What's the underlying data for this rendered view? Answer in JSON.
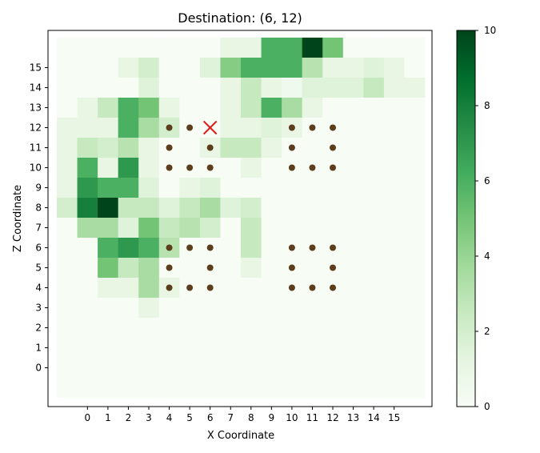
{
  "chart_data": {
    "type": "heatmap",
    "title": "Destination: (6, 12)",
    "xlabel": "X Coordinate",
    "ylabel": "Z Coordinate",
    "x_ticks": [
      "0",
      "1",
      "2",
      "3",
      "4",
      "5",
      "6",
      "7",
      "8",
      "9",
      "10",
      "11",
      "12",
      "13",
      "14",
      "15"
    ],
    "y_ticks": [
      "0",
      "1",
      "2",
      "3",
      "4",
      "5",
      "6",
      "7",
      "8",
      "9",
      "10",
      "11",
      "12",
      "13",
      "14",
      "15"
    ],
    "grid_x_range": [
      -1.5,
      16.5
    ],
    "grid_y_range": [
      -1.5,
      16.5
    ],
    "colormap": "Greens",
    "colorbar": {
      "min": 0,
      "max": 10,
      "ticks": [
        "0",
        "2",
        "4",
        "6",
        "8",
        "10"
      ]
    },
    "rows_top_to_bottom_z": [
      16,
      15,
      14,
      13,
      12,
      11,
      10,
      9,
      8,
      7,
      6,
      5,
      4,
      3,
      2,
      1,
      0,
      -1
    ],
    "columns_left_to_right_x": [
      -1,
      0,
      1,
      2,
      3,
      4,
      5,
      6,
      7,
      8,
      9,
      10,
      11,
      12,
      13,
      14,
      15,
      16
    ],
    "values": [
      [
        0,
        0,
        0,
        0,
        0,
        0,
        0,
        0,
        1,
        1,
        6,
        6,
        10,
        5,
        0,
        0,
        0,
        0
      ],
      [
        0,
        0,
        0,
        1,
        2,
        0,
        0,
        1.5,
        4.5,
        6,
        6,
        6,
        3,
        1,
        1,
        1.5,
        1,
        0
      ],
      [
        0,
        0,
        0,
        0,
        1.5,
        0,
        0,
        0,
        1,
        2.5,
        1,
        0.5,
        1.5,
        1.5,
        1.5,
        2.5,
        1,
        1
      ],
      [
        0,
        1,
        2.5,
        6,
        5,
        1,
        0,
        0,
        1,
        2.5,
        6,
        3.5,
        1,
        0,
        0,
        0,
        0,
        0
      ],
      [
        1,
        1,
        1,
        6,
        3.5,
        2,
        0,
        0,
        1,
        1,
        1.5,
        1,
        0,
        0,
        0,
        0,
        0,
        0
      ],
      [
        1,
        2.5,
        2,
        3,
        1,
        0,
        0,
        1,
        2.5,
        2.5,
        1,
        0,
        0,
        0,
        0,
        0,
        0,
        0
      ],
      [
        1,
        6,
        1,
        7,
        1,
        0,
        0,
        0,
        0,
        1,
        0,
        0,
        0,
        0,
        0,
        0,
        0,
        0
      ],
      [
        1,
        7,
        6,
        6,
        1.5,
        0,
        1,
        1.5,
        0,
        0,
        0,
        0,
        0,
        0,
        0,
        0,
        0,
        0
      ],
      [
        2,
        8,
        10,
        2.5,
        2.5,
        1.5,
        2.5,
        3.5,
        1.5,
        2,
        0,
        0,
        0,
        0,
        0,
        0,
        0,
        0
      ],
      [
        0,
        3.5,
        3.5,
        1.5,
        5,
        2.5,
        3,
        2,
        0,
        2.5,
        0,
        0,
        0,
        0,
        0,
        0,
        0,
        0
      ],
      [
        0,
        0,
        6,
        7,
        6,
        3,
        0,
        0,
        0,
        2.5,
        0,
        0,
        0,
        0,
        0,
        0,
        0,
        0
      ],
      [
        0,
        0,
        5,
        2.5,
        3.5,
        0,
        0,
        0,
        0,
        1,
        0,
        0,
        0,
        0,
        0,
        0,
        0,
        0
      ],
      [
        0,
        0,
        1,
        1,
        3.5,
        1,
        0,
        0,
        0,
        0,
        0,
        0,
        0,
        0,
        0,
        0,
        0,
        0
      ],
      [
        0,
        0,
        0,
        0,
        1,
        0,
        0,
        0,
        0,
        0,
        0,
        0,
        0,
        0,
        0,
        0,
        0,
        0
      ],
      [
        0,
        0,
        0,
        0,
        0,
        0,
        0,
        0,
        0,
        0,
        0,
        0,
        0,
        0,
        0,
        0,
        0,
        0
      ],
      [
        0,
        0,
        0,
        0,
        0,
        0,
        0,
        0,
        0,
        0,
        0,
        0,
        0,
        0,
        0,
        0,
        0,
        0
      ],
      [
        0,
        0,
        0,
        0,
        0,
        0,
        0,
        0,
        0,
        0,
        0,
        0,
        0,
        0,
        0,
        0,
        0,
        0
      ],
      [
        0,
        0,
        0,
        0,
        0,
        0,
        0,
        0,
        0,
        0,
        0,
        0,
        0,
        0,
        0,
        0,
        0,
        0
      ]
    ],
    "markers": [
      [
        4,
        12
      ],
      [
        5,
        12
      ],
      [
        4,
        11
      ],
      [
        6,
        11
      ],
      [
        4,
        10
      ],
      [
        5,
        10
      ],
      [
        6,
        10
      ],
      [
        10,
        12
      ],
      [
        11,
        12
      ],
      [
        12,
        12
      ],
      [
        10,
        11
      ],
      [
        12,
        11
      ],
      [
        10,
        10
      ],
      [
        11,
        10
      ],
      [
        12,
        10
      ],
      [
        4,
        6
      ],
      [
        5,
        6
      ],
      [
        6,
        6
      ],
      [
        4,
        5
      ],
      [
        6,
        5
      ],
      [
        4,
        4
      ],
      [
        5,
        4
      ],
      [
        6,
        4
      ],
      [
        10,
        6
      ],
      [
        11,
        6
      ],
      [
        12,
        6
      ],
      [
        10,
        5
      ],
      [
        12,
        5
      ],
      [
        10,
        4
      ],
      [
        11,
        4
      ],
      [
        12,
        4
      ]
    ],
    "marker_color": "#5c3d1c",
    "destination": [
      6,
      12
    ],
    "destination_color": "#e01b1b"
  }
}
